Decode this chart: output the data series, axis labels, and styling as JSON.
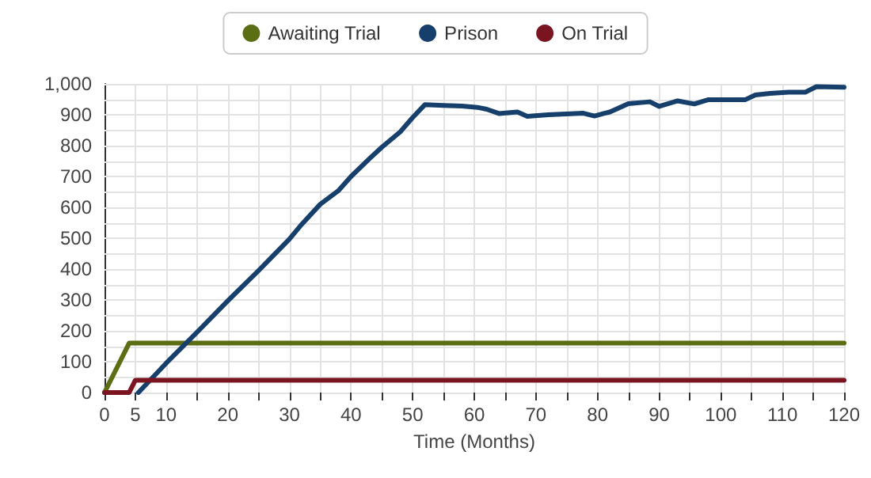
{
  "chart_data": {
    "type": "line",
    "xlabel": "Time (Months)",
    "legend": "top",
    "grid": true,
    "marker": "none",
    "line_style": "solid",
    "xlim": [
      0,
      120
    ],
    "ylim": [
      0,
      1000
    ],
    "xticks": [
      0,
      5,
      10,
      {
        "value": 15,
        "label": null
      },
      20,
      {
        "value": 25,
        "label": null
      },
      30,
      {
        "value": 35,
        "label": null
      },
      40,
      {
        "value": 45,
        "label": null
      },
      50,
      {
        "value": 55,
        "label": null
      },
      60,
      {
        "value": 65,
        "label": null
      },
      70,
      {
        "value": 75,
        "label": null
      },
      80,
      {
        "value": 85,
        "label": null
      },
      90,
      {
        "value": 95,
        "label": null
      },
      100,
      {
        "value": 105,
        "label": null
      },
      110,
      {
        "value": 115,
        "label": null
      },
      120
    ],
    "yticks": [
      0,
      {
        "value": 50,
        "label": null
      },
      100,
      {
        "value": 150,
        "label": null
      },
      200,
      {
        "value": 250,
        "label": null
      },
      300,
      {
        "value": 350,
        "label": null
      },
      400,
      {
        "value": 450,
        "label": null
      },
      500,
      {
        "value": 550,
        "label": null
      },
      600,
      {
        "value": 650,
        "label": null
      },
      700,
      {
        "value": 750,
        "label": null
      },
      800,
      {
        "value": 850,
        "label": null
      },
      900,
      {
        "value": 950,
        "label": null
      },
      {
        "value": 1000,
        "label": "1,000"
      }
    ],
    "series": [
      {
        "name": "Awaiting Trial",
        "color": "#5b6e14",
        "x": [
          0,
          4,
          120
        ],
        "values": [
          0,
          160,
          160
        ]
      },
      {
        "name": "Prison",
        "color": "#16406b",
        "x": [
          5.5,
          10,
          15,
          20,
          25,
          30,
          32,
          35,
          38,
          40,
          43,
          45,
          48,
          50,
          52,
          55,
          58,
          60.5,
          62,
          64,
          67,
          68.6,
          72,
          77.7,
          79.5,
          81,
          82,
          85,
          88.5,
          90,
          93,
          95.7,
          98,
          101,
          104,
          105.6,
          108,
          111,
          113.7,
          115.5,
          120
        ],
        "values": [
          0,
          95,
          195,
          297,
          395,
          497,
          545,
          610,
          655,
          700,
          758,
          795,
          845,
          891,
          933,
          930,
          928,
          924,
          918,
          904,
          909,
          895,
          900,
          905,
          896,
          904,
          909,
          936,
          942,
          927,
          945,
          935,
          949,
          949,
          949,
          964,
          969,
          973,
          973,
          991,
          989
        ]
      },
      {
        "name": "On Trial",
        "color": "#7a1420",
        "x": [
          0,
          4,
          5,
          120
        ],
        "values": [
          0,
          0,
          40,
          40
        ]
      }
    ]
  }
}
